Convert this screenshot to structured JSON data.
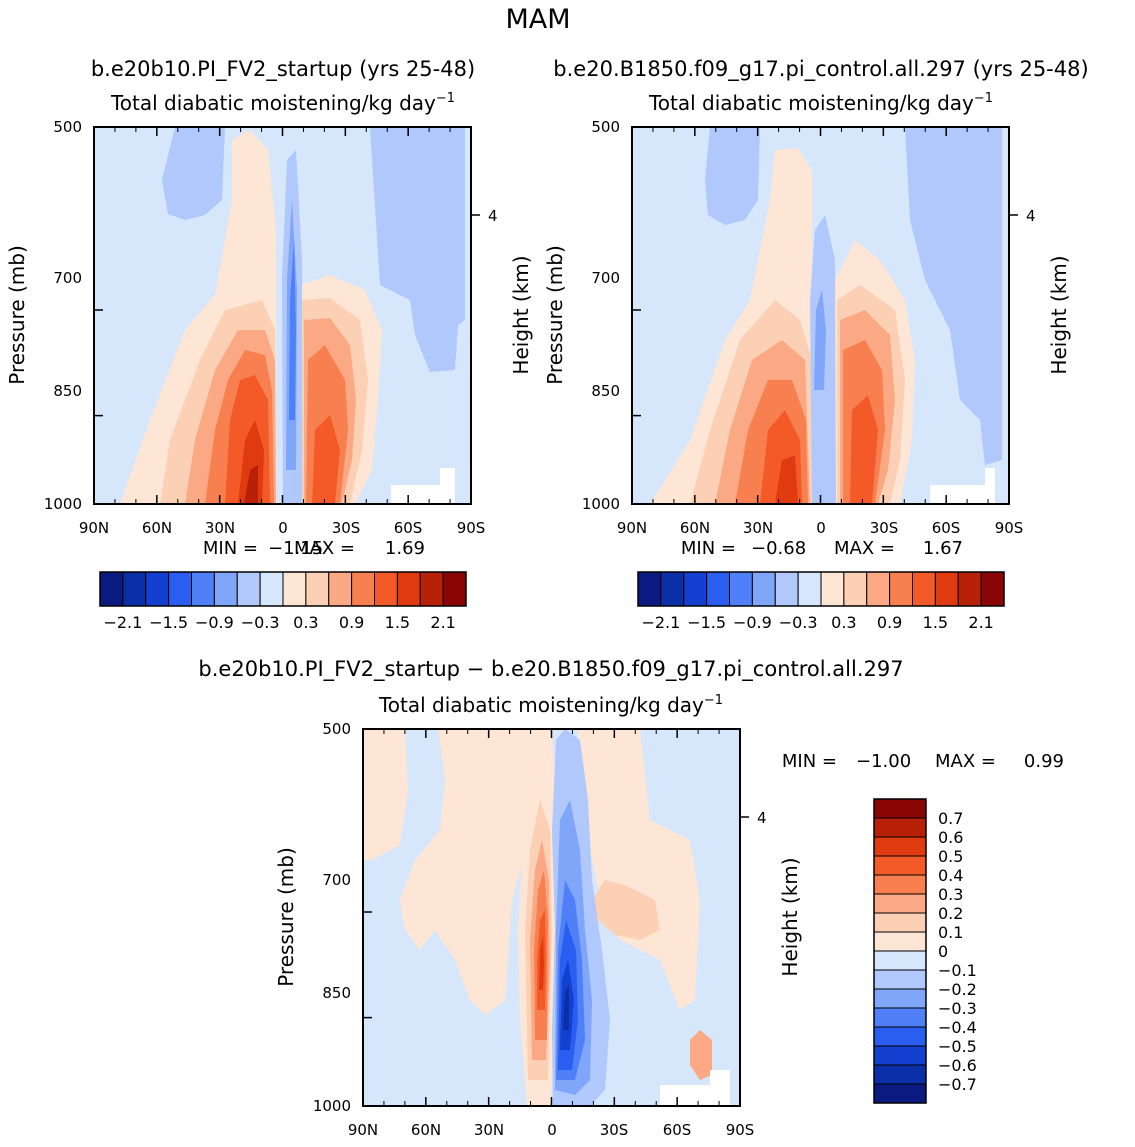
{
  "figure": {
    "title": "MAM",
    "x_tick_labels": [
      "90N",
      "60N",
      "30N",
      "0",
      "30S",
      "60S",
      "90S"
    ],
    "y_tick_labels": [
      "500",
      "700",
      "850",
      "1000"
    ],
    "y_label": "Pressure (mb)",
    "right_label": "Height (km)",
    "height_tick": "4"
  },
  "colors": {
    "neg": [
      "#0a1a80",
      "#0a2fa8",
      "#1440d0",
      "#2a5ef0",
      "#5080f8",
      "#80a6fa",
      "#b0c8fb",
      "#d6e6fb"
    ],
    "pos": [
      "#fde6d6",
      "#fcd0b4",
      "#fba884",
      "#f88050",
      "#f45a28",
      "#e03a10",
      "#b82008",
      "#8a0606"
    ]
  },
  "chart_data": [
    {
      "type": "contour",
      "panel": "top-left",
      "case_title": "b.e20b10.PI_FV2_startup (yrs 25-48)",
      "subtitle": "Total diabatic moistening/kg day",
      "subtitle_exp": "−1",
      "x_range_deg_lat": [
        90,
        -90
      ],
      "y_range_mb": [
        500,
        1000
      ],
      "min_label": "MIN = ",
      "min": "−1.15",
      "max_label": "MAX = ",
      "max": "1.69",
      "colorbar_levels": [
        "−2.1",
        "−1.5",
        "−0.9",
        "−0.3",
        "0.3",
        "0.9",
        "1.5",
        "2.1"
      ]
    },
    {
      "type": "contour",
      "panel": "top-right",
      "case_title": "b.e20.B1850.f09_g17.pi_control.all.297 (yrs 25-48)",
      "subtitle": "Total diabatic moistening/kg day",
      "subtitle_exp": "−1",
      "x_range_deg_lat": [
        90,
        -90
      ],
      "y_range_mb": [
        500,
        1000
      ],
      "min_label": "MIN = ",
      "min": "−0.68",
      "max_label": "MAX = ",
      "max": "1.67",
      "colorbar_levels": [
        "−2.1",
        "−1.5",
        "−0.9",
        "−0.3",
        "0.3",
        "0.9",
        "1.5",
        "2.1"
      ]
    },
    {
      "type": "contour",
      "panel": "bottom",
      "case_title": "b.e20b10.PI_FV2_startup − b.e20.B1850.f09_g17.pi_control.all.297",
      "subtitle": "Total diabatic moistening/kg day",
      "subtitle_exp": "−1",
      "x_range_deg_lat": [
        90,
        -90
      ],
      "y_range_mb": [
        500,
        1000
      ],
      "min_label": "MIN = ",
      "min": "−1.00",
      "max_label": "MAX = ",
      "max": "0.99",
      "colorbar_levels": [
        "0.7",
        "0.6",
        "0.5",
        "0.4",
        "0.3",
        "0.2",
        "0.1",
        "0",
        "−0.1",
        "−0.2",
        "−0.3",
        "−0.4",
        "−0.5",
        "−0.6",
        "−0.7"
      ]
    }
  ]
}
